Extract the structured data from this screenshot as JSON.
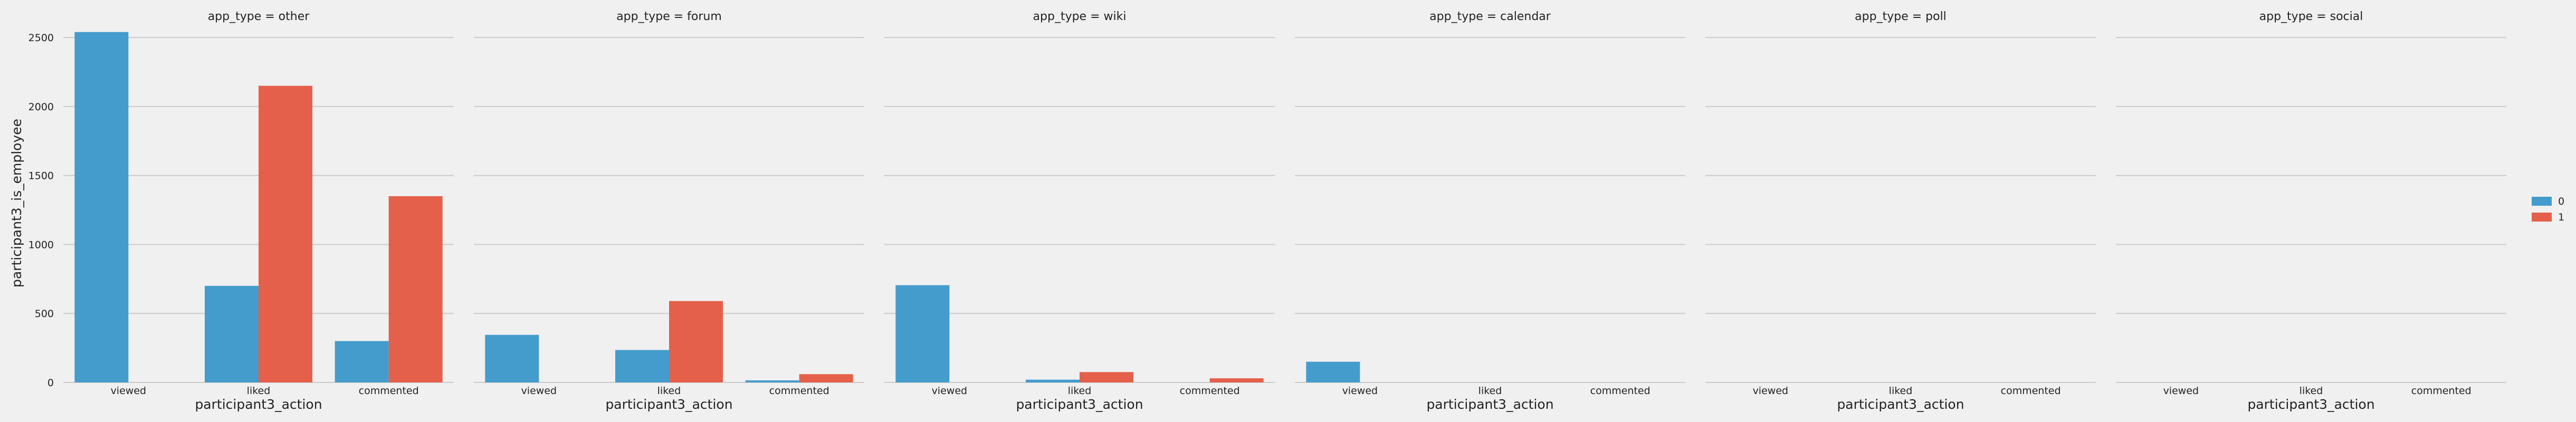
{
  "chart_data": {
    "type": "bar",
    "facet_variable": "app_type",
    "panels": [
      {
        "title": "app_type = other",
        "values": {
          "0": [
            2540,
            700,
            300
          ],
          "1": [
            0,
            2150,
            1350
          ]
        }
      },
      {
        "title": "app_type = forum",
        "values": {
          "0": [
            345,
            235,
            15
          ],
          "1": [
            0,
            590,
            60
          ]
        }
      },
      {
        "title": "app_type = wiki",
        "values": {
          "0": [
            705,
            20,
            0
          ],
          "1": [
            0,
            75,
            30
          ]
        }
      },
      {
        "title": "app_type = calendar",
        "values": {
          "0": [
            150,
            0,
            0
          ],
          "1": [
            0,
            0,
            0
          ]
        }
      },
      {
        "title": "app_type = poll",
        "values": {
          "0": [
            0,
            0,
            0
          ],
          "1": [
            0,
            0,
            0
          ]
        }
      },
      {
        "title": "app_type = social",
        "values": {
          "0": [
            0,
            0,
            0
          ],
          "1": [
            0,
            0,
            0
          ]
        }
      }
    ],
    "categories": [
      "viewed",
      "liked",
      "commented"
    ],
    "series": [
      {
        "name": "0",
        "color": "#449ccc"
      },
      {
        "name": "1",
        "color": "#e5604a"
      }
    ],
    "xlabel": "participant3_action",
    "ylabel": "participant3_is_employee",
    "ylim": [
      0,
      2600
    ],
    "yticks": [
      0,
      500,
      1000,
      1500,
      2000,
      2500
    ],
    "grid": true,
    "legend_position": "right"
  }
}
